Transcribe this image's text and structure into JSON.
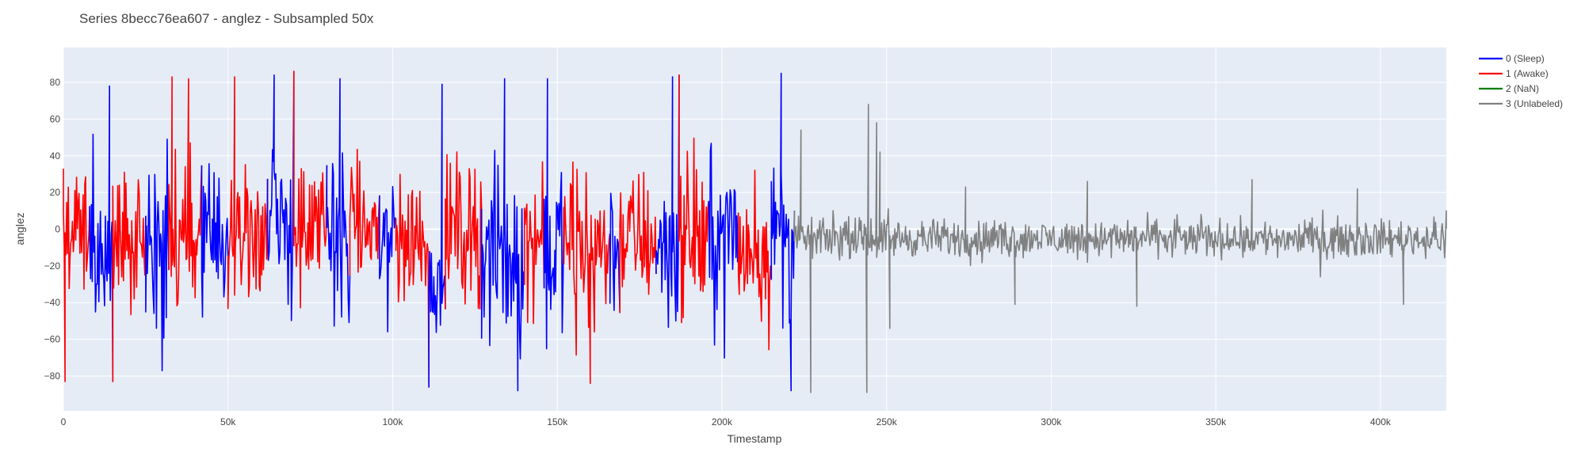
{
  "chart_data": {
    "type": "line",
    "title": "Series 8becc76ea607 - anglez - Subsampled 50x",
    "xlabel": "Timestamp",
    "ylabel": "anglez",
    "xlim": [
      0,
      420000
    ],
    "ylim": [
      -99,
      99
    ],
    "x_ticks": [
      0,
      50000,
      100000,
      150000,
      200000,
      250000,
      300000,
      350000,
      400000
    ],
    "x_tick_labels": [
      "0",
      "50k",
      "100k",
      "150k",
      "200k",
      "250k",
      "300k",
      "350k",
      "400k"
    ],
    "y_ticks": [
      -80,
      -60,
      -40,
      -20,
      0,
      20,
      40,
      60,
      80
    ],
    "y_tick_labels": [
      "−80",
      "−60",
      "−40",
      "−20",
      "0",
      "20",
      "40",
      "60",
      "80"
    ],
    "grid": true,
    "legend_position": "right",
    "background": "#E5ECF6",
    "series": [
      {
        "name": "0 (Sleep)",
        "color": "#0000FF"
      },
      {
        "name": "1 (Awake)",
        "color": "#FF0000"
      },
      {
        "name": "2 (NaN)",
        "color": "#008000"
      },
      {
        "name": "3 (Unlabeled)",
        "color": "#808080"
      }
    ],
    "segments": [
      {
        "series": 1,
        "x_start": 0,
        "x_end": 8000,
        "amplitude": 55,
        "bias": -5
      },
      {
        "series": 0,
        "x_start": 8000,
        "x_end": 15000,
        "amplitude": 60,
        "bias": -20
      },
      {
        "series": 1,
        "x_start": 15000,
        "x_end": 25000,
        "amplitude": 55,
        "bias": -5
      },
      {
        "series": 0,
        "x_start": 25000,
        "x_end": 32000,
        "amplitude": 65,
        "bias": -5
      },
      {
        "series": 1,
        "x_start": 32000,
        "x_end": 42000,
        "amplitude": 60,
        "bias": 0
      },
      {
        "series": 0,
        "x_start": 42000,
        "x_end": 50000,
        "amplitude": 60,
        "bias": -10
      },
      {
        "series": 1,
        "x_start": 50000,
        "x_end": 62000,
        "amplitude": 60,
        "bias": 0
      },
      {
        "series": 0,
        "x_start": 62000,
        "x_end": 70000,
        "amplitude": 70,
        "bias": 0
      },
      {
        "series": 1,
        "x_start": 70000,
        "x_end": 80000,
        "amplitude": 55,
        "bias": 0
      },
      {
        "series": 0,
        "x_start": 80000,
        "x_end": 87000,
        "amplitude": 70,
        "bias": 0
      },
      {
        "series": 1,
        "x_start": 87000,
        "x_end": 96000,
        "amplitude": 50,
        "bias": 0
      },
      {
        "series": 0,
        "x_start": 96000,
        "x_end": 101000,
        "amplitude": 65,
        "bias": -5
      },
      {
        "series": 1,
        "x_start": 101000,
        "x_end": 111000,
        "amplitude": 50,
        "bias": -5
      },
      {
        "series": 0,
        "x_start": 111000,
        "x_end": 116000,
        "amplitude": 40,
        "bias": -30
      },
      {
        "series": 1,
        "x_start": 116000,
        "x_end": 127000,
        "amplitude": 55,
        "bias": 0
      },
      {
        "series": 0,
        "x_start": 127000,
        "x_end": 140000,
        "amplitude": 70,
        "bias": -15
      },
      {
        "series": 1,
        "x_start": 140000,
        "x_end": 146000,
        "amplitude": 55,
        "bias": -5
      },
      {
        "series": 0,
        "x_start": 146000,
        "x_end": 152000,
        "amplitude": 65,
        "bias": -10
      },
      {
        "series": 1,
        "x_start": 152000,
        "x_end": 166000,
        "amplitude": 65,
        "bias": -10
      },
      {
        "series": 0,
        "x_start": 166000,
        "x_end": 169000,
        "amplitude": 60,
        "bias": -10
      },
      {
        "series": 1,
        "x_start": 169000,
        "x_end": 180000,
        "amplitude": 55,
        "bias": -5
      },
      {
        "series": 0,
        "x_start": 180000,
        "x_end": 187000,
        "amplitude": 65,
        "bias": -10
      },
      {
        "series": 1,
        "x_start": 187000,
        "x_end": 196000,
        "amplitude": 60,
        "bias": -5
      },
      {
        "series": 0,
        "x_start": 196000,
        "x_end": 205000,
        "amplitude": 65,
        "bias": -5
      },
      {
        "series": 1,
        "x_start": 205000,
        "x_end": 215000,
        "amplitude": 60,
        "bias": -10
      },
      {
        "series": 0,
        "x_start": 215000,
        "x_end": 222000,
        "amplitude": 70,
        "bias": -5
      },
      {
        "series": 3,
        "x_start": 222000,
        "x_end": 420000,
        "amplitude": 15,
        "bias": -5
      }
    ],
    "extremes": [
      {
        "x": 0,
        "y": 33
      },
      {
        "x": 500,
        "y": -83
      },
      {
        "x": 14000,
        "y": 78
      },
      {
        "x": 15000,
        "y": -83
      },
      {
        "x": 33000,
        "y": 83
      },
      {
        "x": 38000,
        "y": 82
      },
      {
        "x": 52000,
        "y": 83
      },
      {
        "x": 64000,
        "y": 84
      },
      {
        "x": 70000,
        "y": 86
      },
      {
        "x": 84000,
        "y": 82
      },
      {
        "x": 111000,
        "y": -86
      },
      {
        "x": 115000,
        "y": 79
      },
      {
        "x": 134000,
        "y": 82
      },
      {
        "x": 138000,
        "y": -88
      },
      {
        "x": 147000,
        "y": 82
      },
      {
        "x": 160000,
        "y": -84
      },
      {
        "x": 185000,
        "y": 83
      },
      {
        "x": 187000,
        "y": 84
      },
      {
        "x": 218000,
        "y": 85
      },
      {
        "x": 221000,
        "y": -88
      },
      {
        "x": 224000,
        "y": 54
      },
      {
        "x": 227000,
        "y": -89
      },
      {
        "x": 244000,
        "y": -89
      },
      {
        "x": 244500,
        "y": 68
      },
      {
        "x": 247000,
        "y": 58
      },
      {
        "x": 248000,
        "y": 42
      },
      {
        "x": 251000,
        "y": -54
      },
      {
        "x": 274000,
        "y": 23
      },
      {
        "x": 289000,
        "y": -41
      },
      {
        "x": 311000,
        "y": 26
      },
      {
        "x": 326000,
        "y": -42
      },
      {
        "x": 361000,
        "y": 27
      },
      {
        "x": 393000,
        "y": 22
      },
      {
        "x": 407000,
        "y": -41
      },
      {
        "x": 420000,
        "y": 10
      }
    ]
  }
}
